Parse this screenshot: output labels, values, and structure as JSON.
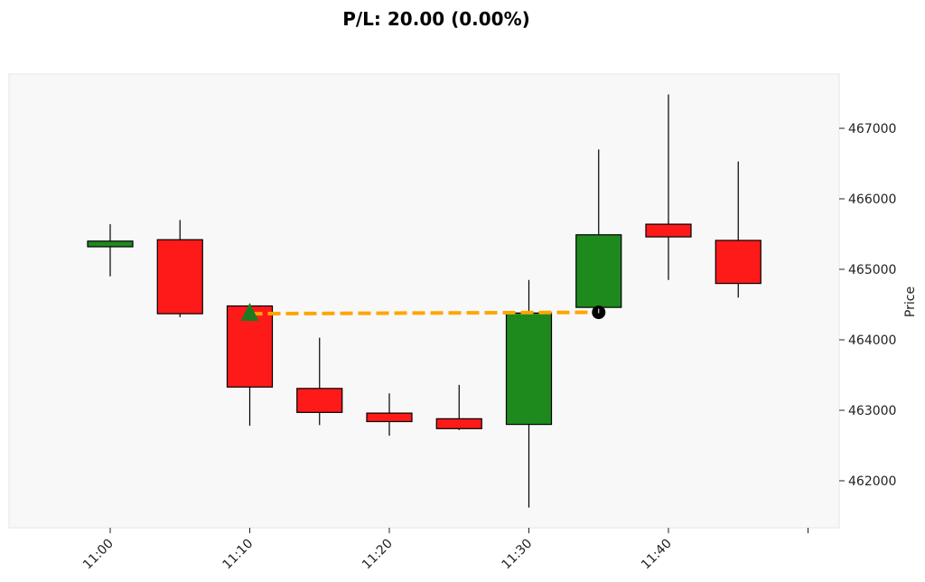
{
  "chart_data": {
    "type": "candlestick",
    "title": "P/L: 20.00 (0.00%)",
    "xlabel": "",
    "ylabel": "Price",
    "y_axis_side": "right",
    "grid": false,
    "ylim": [
      461300,
      467900
    ],
    "x_ticks": [
      "11:00",
      "11:10",
      "11:20",
      "11:30",
      "11:40"
    ],
    "y_ticks": [
      462000,
      463000,
      464000,
      465000,
      466000,
      467000
    ],
    "candles": [
      {
        "time": "11:00",
        "open": 465320,
        "high": 465640,
        "low": 464900,
        "close": 465400
      },
      {
        "time": "11:05",
        "open": 465420,
        "high": 465700,
        "low": 464320,
        "close": 464370
      },
      {
        "time": "11:10",
        "open": 464480,
        "high": 464510,
        "low": 462780,
        "close": 463330
      },
      {
        "time": "11:15",
        "open": 463310,
        "high": 464030,
        "low": 462790,
        "close": 462970
      },
      {
        "time": "11:20",
        "open": 462960,
        "high": 463240,
        "low": 462640,
        "close": 462840
      },
      {
        "time": "11:25",
        "open": 462880,
        "high": 463360,
        "low": 462720,
        "close": 462740
      },
      {
        "time": "11:30",
        "open": 462800,
        "high": 464850,
        "low": 461620,
        "close": 464380
      },
      {
        "time": "11:35",
        "open": 464460,
        "high": 466700,
        "low": 464400,
        "close": 465490
      },
      {
        "time": "11:40",
        "open": 465640,
        "high": 467480,
        "low": 464850,
        "close": 465460
      },
      {
        "time": "11:45",
        "open": 465410,
        "high": 466530,
        "low": 464600,
        "close": 464800
      }
    ],
    "trade": {
      "entry_time": "11:10",
      "entry_price": 464370,
      "exit_time": "11:35",
      "exit_price": 464390
    },
    "colors": {
      "up": "#1e8a1e",
      "down": "#ff1a1a",
      "trade_line": "#ffa500",
      "entry_marker": "#1e7a1e",
      "exit_marker": "#000000",
      "plot_bg": "#f8f8f8"
    }
  }
}
